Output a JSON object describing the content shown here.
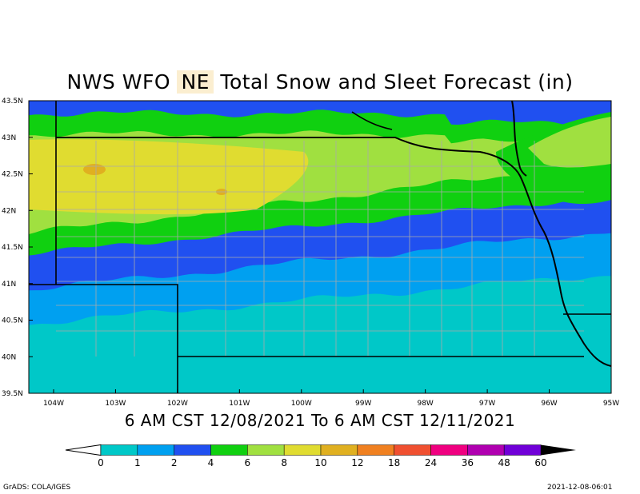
{
  "title": {
    "prefix": "NWS WFO",
    "office": "NE",
    "suffix": "Total Snow and Sleet Forecast (in)"
  },
  "subtitle": "6 AM CST 12/08/2021 To 6 AM CST 12/11/2021",
  "footer": {
    "left": "GrADS: COLA/IGES",
    "right": "2021-12-08-06:01"
  },
  "axes": {
    "lat_labels": [
      "43.5N",
      "43N",
      "42.5N",
      "42N",
      "41.5N",
      "41N",
      "40.5N",
      "40N",
      "39.5N"
    ],
    "lon_labels": [
      "104W",
      "103W",
      "102W",
      "101W",
      "100W",
      "99W",
      "98W",
      "97W",
      "96W",
      "95W"
    ],
    "lat_range": [
      39.5,
      43.5
    ],
    "lon_range": [
      -104.4,
      -95.0
    ]
  },
  "legend": {
    "ticks": [
      "0",
      "1",
      "2",
      "4",
      "6",
      "8",
      "10",
      "12",
      "18",
      "24",
      "36",
      "48",
      "60"
    ],
    "colors": [
      "#00c8c8",
      "#00a0f0",
      "#2050f0",
      "#10d010",
      "#a0e040",
      "#e0dc30",
      "#e0b020",
      "#f08020",
      "#f05030",
      "#f00080",
      "#b000b0",
      "#7000d8"
    ]
  },
  "colors": {
    "band_0_1": "#00c8c8",
    "band_1_2": "#00a0f0",
    "band_2_4": "#2050f0",
    "band_4_6": "#10d010",
    "band_6_8": "#a0e040",
    "band_8_10": "#e0dc30",
    "band_10_12": "#e0b020",
    "state_line": "#000000",
    "county_line": "#aaaaaa"
  }
}
